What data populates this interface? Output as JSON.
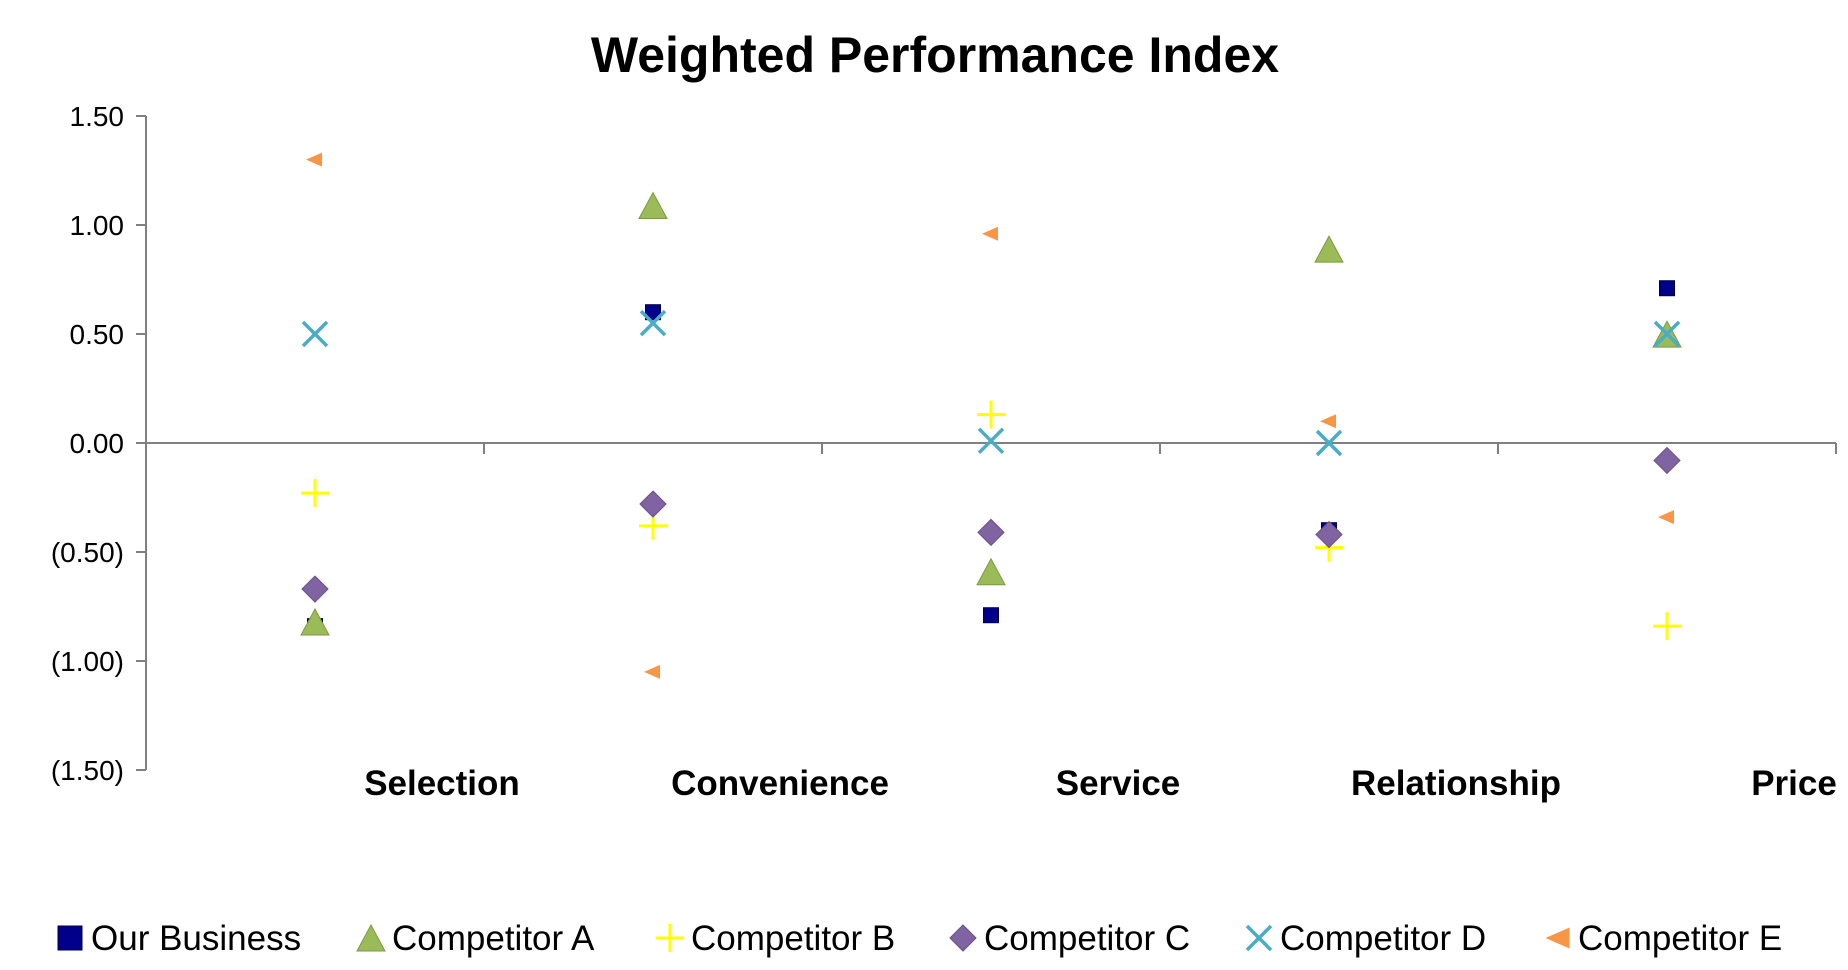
{
  "chart_data": {
    "type": "scatter",
    "title": "Weighted Performance Index",
    "xlabel": "",
    "ylabel": "",
    "categories": [
      "Selection",
      "Convenience",
      "Service",
      "Relationship",
      "Price"
    ],
    "ylim": [
      -1.5,
      1.5
    ],
    "yticks": [
      1.5,
      1.0,
      0.5,
      0.0,
      -0.5,
      -1.0,
      -1.5
    ],
    "ytick_labels": [
      "1.50",
      "1.00",
      "0.50",
      "0.00",
      "(0.50)",
      "(1.00)",
      "(1.50)"
    ],
    "grid": false,
    "legend_position": "bottom",
    "series": [
      {
        "name": "Our Business",
        "marker": "square",
        "color": "#00008b",
        "values": [
          -0.84,
          0.6,
          -0.79,
          -0.4,
          0.71
        ]
      },
      {
        "name": "Competitor A",
        "marker": "triangle",
        "color": "#9bbb59",
        "values": [
          -0.83,
          1.08,
          -0.6,
          0.88,
          0.49
        ]
      },
      {
        "name": "Competitor B",
        "marker": "plus",
        "color": "#ffff00",
        "values": [
          -0.23,
          -0.38,
          0.13,
          -0.48,
          -0.84
        ]
      },
      {
        "name": "Competitor C",
        "marker": "diamond",
        "color": "#8064a2",
        "values": [
          -0.67,
          -0.28,
          -0.41,
          -0.42,
          -0.08
        ]
      },
      {
        "name": "Competitor D",
        "marker": "x",
        "color": "#4bacc6",
        "values": [
          0.5,
          0.55,
          0.01,
          0.0,
          0.5
        ]
      },
      {
        "name": "Competitor E",
        "marker": "left-triangle",
        "color": "#f79646",
        "values": [
          1.3,
          -1.05,
          0.96,
          0.1,
          -0.34
        ]
      }
    ]
  }
}
